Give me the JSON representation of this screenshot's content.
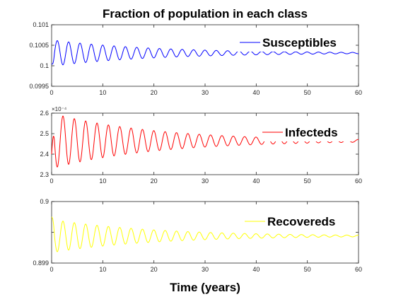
{
  "figure": {
    "title": "Fraction of population in each class",
    "xlabel": "Time (years)"
  },
  "chart_data": [
    {
      "type": "line",
      "series": [
        {
          "name": "Susceptibles",
          "color": "#0000ff",
          "baseline": 0.10031,
          "initial": 0.10005,
          "amplitude": 0.00032,
          "period_years": 2.22,
          "decay_per_year": 0.05,
          "phase": -1.5708
        }
      ],
      "xlim": [
        0,
        60
      ],
      "ylim": [
        0.0995,
        0.101
      ],
      "xticks": [
        0,
        10,
        20,
        30,
        40,
        50,
        60
      ],
      "yticks": [
        0.0995,
        0.1,
        0.1005,
        0.101
      ],
      "ytick_labels": [
        "0.0995",
        "0.1",
        "0.1005",
        "0.101"
      ],
      "legend": "top-right",
      "grid": false
    },
    {
      "type": "line",
      "series": [
        {
          "name": "Infecteds",
          "color": "#ff0000",
          "baseline": 2.465,
          "initial": 2.4,
          "amplitude": 0.135,
          "period_years": 2.22,
          "decay_per_year": 0.05,
          "phase": 1.5708
        }
      ],
      "xlim": [
        0,
        60
      ],
      "ylim": [
        2.3,
        2.6
      ],
      "y_exponent_label": "×10⁻⁴",
      "xticks": [
        0,
        10,
        20,
        30,
        40,
        50,
        60
      ],
      "yticks": [
        2.3,
        2.4,
        2.5,
        2.6
      ],
      "ytick_labels": [
        "2.3",
        "2.4",
        "2.5",
        "2.6"
      ],
      "legend": "top-right",
      "grid": false
    },
    {
      "type": "line",
      "series": [
        {
          "name": "Recovereds",
          "color": "#ffff00",
          "baseline": 0.89944,
          "initial": 0.89975,
          "amplitude": 0.00027,
          "period_years": 2.22,
          "decay_per_year": 0.05,
          "phase": 1.5708
        }
      ],
      "xlim": [
        0,
        60
      ],
      "ylim": [
        0.899,
        0.9
      ],
      "xticks": [
        0,
        10,
        20,
        30,
        40,
        50,
        60
      ],
      "yticks": [
        0.899,
        0.8995,
        0.9
      ],
      "ytick_labels": [
        "0.899",
        "",
        "0.9"
      ],
      "legend": "top-right",
      "grid": false
    }
  ]
}
